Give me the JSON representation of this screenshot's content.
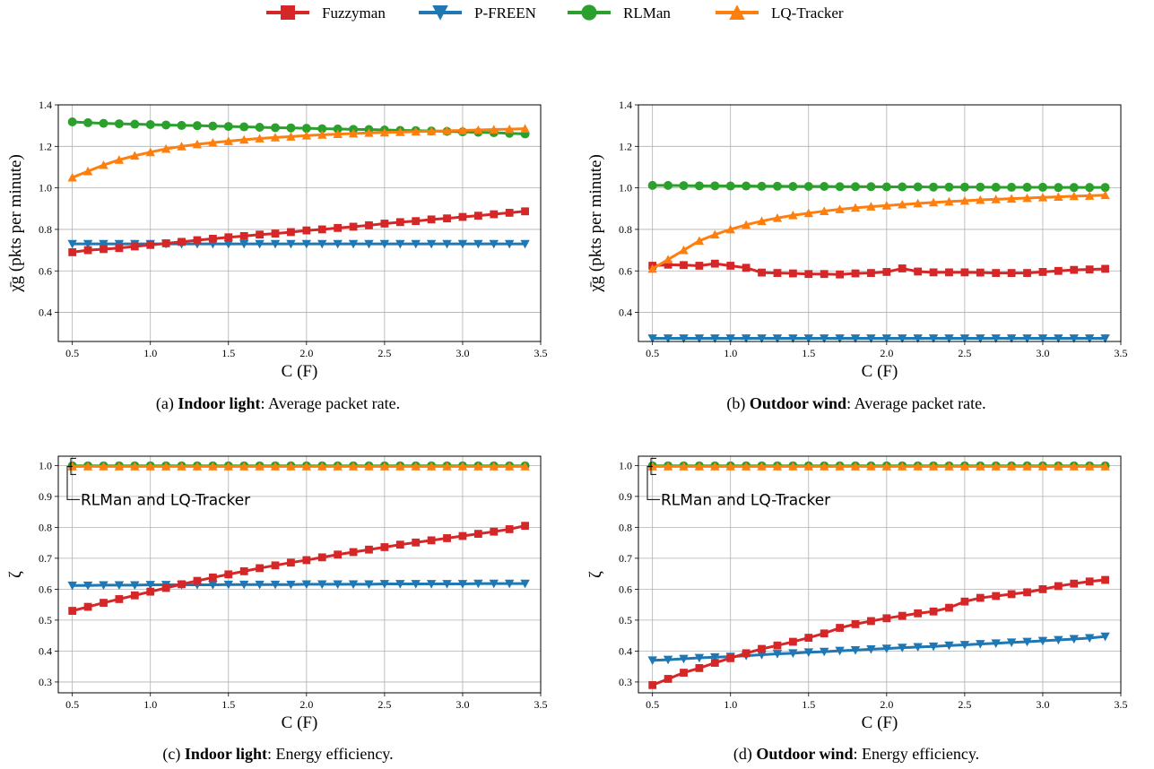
{
  "legend": [
    {
      "name": "Fuzzyman",
      "color": "#d62728",
      "marker": "square"
    },
    {
      "name": "P-FREEN",
      "color": "#1f77b4",
      "marker": "triangle-down"
    },
    {
      "name": "RLMan",
      "color": "#2ca02c",
      "marker": "circle"
    },
    {
      "name": "LQ-Tracker",
      "color": "#ff7f0e",
      "marker": "triangle-up"
    }
  ],
  "captions": [
    {
      "prefix": "(a) ",
      "bold": "Indoor light",
      "rest": ": Average packet rate."
    },
    {
      "prefix": "(b) ",
      "bold": "Outdoor wind",
      "rest": ": Average packet rate."
    },
    {
      "prefix": "(c) ",
      "bold": "Indoor light",
      "rest": ": Energy efficiency."
    },
    {
      "prefix": "(d) ",
      "bold": "Outdoor wind",
      "rest": ": Energy efficiency."
    }
  ],
  "chart_data": [
    {
      "type": "line",
      "xlabel": "C (F)",
      "ylabel": "χ̄g (pkts per minute)",
      "xlim": [
        0.41,
        3.5
      ],
      "ylim": [
        0.26,
        1.4
      ],
      "xticks": [
        0.5,
        1.0,
        1.5,
        2.0,
        2.5,
        3.0,
        3.5
      ],
      "yticks": [
        0.4,
        0.6,
        0.8,
        1.0,
        1.2,
        1.4
      ],
      "grid": true,
      "x": [
        0.5,
        0.6,
        0.7,
        0.8,
        0.9,
        1.0,
        1.1,
        1.2,
        1.3,
        1.4,
        1.5,
        1.6,
        1.7,
        1.8,
        1.9,
        2.0,
        2.1,
        2.2,
        2.3,
        2.4,
        2.5,
        2.6,
        2.7,
        2.8,
        2.9,
        3.0,
        3.1,
        3.2,
        3.3,
        3.4
      ],
      "series": [
        {
          "name": "Fuzzyman",
          "values": [
            0.69,
            0.7,
            0.705,
            0.71,
            0.718,
            0.725,
            0.733,
            0.74,
            0.748,
            0.755,
            0.762,
            0.768,
            0.775,
            0.78,
            0.787,
            0.795,
            0.8,
            0.807,
            0.813,
            0.82,
            0.828,
            0.835,
            0.84,
            0.848,
            0.853,
            0.86,
            0.866,
            0.873,
            0.88,
            0.887
          ]
        },
        {
          "name": "P-FREEN",
          "values": [
            0.73,
            0.73,
            0.73,
            0.73,
            0.73,
            0.73,
            0.73,
            0.73,
            0.73,
            0.73,
            0.73,
            0.73,
            0.73,
            0.73,
            0.73,
            0.73,
            0.73,
            0.73,
            0.73,
            0.73,
            0.73,
            0.73,
            0.73,
            0.73,
            0.73,
            0.73,
            0.73,
            0.73,
            0.73,
            0.73
          ]
        },
        {
          "name": "RLMan",
          "values": [
            1.318,
            1.314,
            1.311,
            1.309,
            1.307,
            1.305,
            1.303,
            1.301,
            1.3,
            1.298,
            1.296,
            1.294,
            1.292,
            1.29,
            1.289,
            1.287,
            1.285,
            1.284,
            1.282,
            1.281,
            1.279,
            1.277,
            1.276,
            1.274,
            1.272,
            1.27,
            1.268,
            1.266,
            1.263,
            1.26
          ]
        },
        {
          "name": "LQ-Tracker",
          "values": [
            1.05,
            1.08,
            1.11,
            1.135,
            1.155,
            1.172,
            1.188,
            1.2,
            1.21,
            1.218,
            1.225,
            1.232,
            1.238,
            1.243,
            1.247,
            1.252,
            1.256,
            1.259,
            1.262,
            1.265,
            1.267,
            1.269,
            1.271,
            1.273,
            1.275,
            1.277,
            1.279,
            1.281,
            1.283,
            1.285
          ]
        }
      ]
    },
    {
      "type": "line",
      "xlabel": "C (F)",
      "ylabel": "χ̄g (pkts per minute)",
      "xlim": [
        0.41,
        3.5
      ],
      "ylim": [
        0.26,
        1.4
      ],
      "xticks": [
        0.5,
        1.0,
        1.5,
        2.0,
        2.5,
        3.0,
        3.5
      ],
      "yticks": [
        0.4,
        0.6,
        0.8,
        1.0,
        1.2,
        1.4
      ],
      "grid": true,
      "x": [
        0.5,
        0.6,
        0.7,
        0.8,
        0.9,
        1.0,
        1.1,
        1.2,
        1.3,
        1.4,
        1.5,
        1.6,
        1.7,
        1.8,
        1.9,
        2.0,
        2.1,
        2.2,
        2.3,
        2.4,
        2.5,
        2.6,
        2.7,
        2.8,
        2.9,
        3.0,
        3.1,
        3.2,
        3.3,
        3.4
      ],
      "series": [
        {
          "name": "Fuzzyman",
          "values": [
            0.625,
            0.63,
            0.628,
            0.625,
            0.635,
            0.625,
            0.615,
            0.592,
            0.59,
            0.588,
            0.585,
            0.585,
            0.583,
            0.588,
            0.59,
            0.595,
            0.612,
            0.597,
            0.593,
            0.593,
            0.593,
            0.592,
            0.59,
            0.59,
            0.59,
            0.595,
            0.6,
            0.605,
            0.607,
            0.61
          ]
        },
        {
          "name": "P-FREEN",
          "values": [
            0.275,
            0.275,
            0.275,
            0.275,
            0.275,
            0.275,
            0.275,
            0.275,
            0.275,
            0.275,
            0.275,
            0.275,
            0.275,
            0.275,
            0.275,
            0.275,
            0.275,
            0.275,
            0.275,
            0.275,
            0.275,
            0.275,
            0.275,
            0.275,
            0.275,
            0.275,
            0.275,
            0.275,
            0.275,
            0.275
          ]
        },
        {
          "name": "RLMan",
          "values": [
            1.012,
            1.012,
            1.011,
            1.01,
            1.01,
            1.009,
            1.009,
            1.008,
            1.008,
            1.007,
            1.007,
            1.007,
            1.006,
            1.006,
            1.006,
            1.005,
            1.005,
            1.005,
            1.004,
            1.004,
            1.004,
            1.004,
            1.003,
            1.003,
            1.003,
            1.003,
            1.002,
            1.002,
            1.002,
            1.002
          ]
        },
        {
          "name": "LQ-Tracker",
          "values": [
            0.61,
            0.655,
            0.7,
            0.745,
            0.775,
            0.8,
            0.822,
            0.84,
            0.855,
            0.868,
            0.878,
            0.888,
            0.897,
            0.904,
            0.91,
            0.915,
            0.92,
            0.925,
            0.93,
            0.934,
            0.938,
            0.942,
            0.945,
            0.948,
            0.951,
            0.954,
            0.957,
            0.96,
            0.962,
            0.965
          ]
        }
      ]
    },
    {
      "type": "line",
      "xlabel": "C (F)",
      "ylabel": "ζ",
      "xlim": [
        0.41,
        3.5
      ],
      "ylim": [
        0.265,
        1.03
      ],
      "xticks": [
        0.5,
        1.0,
        1.5,
        2.0,
        2.5,
        3.0,
        3.5
      ],
      "yticks": [
        0.3,
        0.4,
        0.5,
        0.6,
        0.7,
        0.8,
        0.9,
        1.0
      ],
      "grid": true,
      "annotation": "RLMan and LQ-Tracker",
      "x": [
        0.5,
        0.6,
        0.7,
        0.8,
        0.9,
        1.0,
        1.1,
        1.2,
        1.3,
        1.4,
        1.5,
        1.6,
        1.7,
        1.8,
        1.9,
        2.0,
        2.1,
        2.2,
        2.3,
        2.4,
        2.5,
        2.6,
        2.7,
        2.8,
        2.9,
        3.0,
        3.1,
        3.2,
        3.3,
        3.4
      ],
      "series": [
        {
          "name": "Fuzzyman",
          "values": [
            0.53,
            0.543,
            0.556,
            0.568,
            0.58,
            0.592,
            0.604,
            0.616,
            0.627,
            0.638,
            0.648,
            0.658,
            0.668,
            0.677,
            0.686,
            0.694,
            0.703,
            0.712,
            0.72,
            0.728,
            0.736,
            0.744,
            0.751,
            0.758,
            0.765,
            0.772,
            0.779,
            0.786,
            0.794,
            0.805
          ]
        },
        {
          "name": "P-FREEN",
          "values": [
            0.612,
            0.612,
            0.613,
            0.613,
            0.613,
            0.614,
            0.614,
            0.614,
            0.614,
            0.614,
            0.615,
            0.615,
            0.615,
            0.615,
            0.615,
            0.616,
            0.616,
            0.616,
            0.616,
            0.616,
            0.617,
            0.617,
            0.617,
            0.617,
            0.617,
            0.617,
            0.618,
            0.618,
            0.618,
            0.618
          ]
        },
        {
          "name": "RLMan",
          "values": [
            0.999,
            0.999,
            0.999,
            0.999,
            0.999,
            0.999,
            0.999,
            0.999,
            0.999,
            0.999,
            0.999,
            0.999,
            0.999,
            0.999,
            0.999,
            0.999,
            0.999,
            0.999,
            0.999,
            0.999,
            0.999,
            0.999,
            0.999,
            0.999,
            0.999,
            0.999,
            0.999,
            0.999,
            0.999,
            0.999
          ]
        },
        {
          "name": "LQ-Tracker",
          "values": [
            0.997,
            0.997,
            0.997,
            0.997,
            0.997,
            0.997,
            0.997,
            0.997,
            0.997,
            0.997,
            0.997,
            0.997,
            0.997,
            0.997,
            0.997,
            0.997,
            0.997,
            0.997,
            0.997,
            0.997,
            0.997,
            0.997,
            0.997,
            0.997,
            0.997,
            0.997,
            0.997,
            0.997,
            0.997,
            0.997
          ]
        }
      ]
    },
    {
      "type": "line",
      "xlabel": "C (F)",
      "ylabel": "ζ",
      "xlim": [
        0.41,
        3.5
      ],
      "ylim": [
        0.265,
        1.03
      ],
      "xticks": [
        0.5,
        1.0,
        1.5,
        2.0,
        2.5,
        3.0,
        3.5
      ],
      "yticks": [
        0.3,
        0.4,
        0.5,
        0.6,
        0.7,
        0.8,
        0.9,
        1.0
      ],
      "grid": true,
      "annotation": "RLMan and LQ-Tracker",
      "x": [
        0.5,
        0.6,
        0.7,
        0.8,
        0.9,
        1.0,
        1.1,
        1.2,
        1.3,
        1.4,
        1.5,
        1.6,
        1.7,
        1.8,
        1.9,
        2.0,
        2.1,
        2.2,
        2.3,
        2.4,
        2.5,
        2.6,
        2.7,
        2.8,
        2.9,
        3.0,
        3.1,
        3.2,
        3.3,
        3.4
      ],
      "series": [
        {
          "name": "Fuzzyman",
          "values": [
            0.29,
            0.31,
            0.33,
            0.345,
            0.362,
            0.377,
            0.393,
            0.407,
            0.418,
            0.43,
            0.443,
            0.457,
            0.475,
            0.487,
            0.497,
            0.506,
            0.514,
            0.522,
            0.528,
            0.54,
            0.56,
            0.572,
            0.578,
            0.584,
            0.59,
            0.6,
            0.61,
            0.618,
            0.625,
            0.63
          ]
        },
        {
          "name": "P-FREEN",
          "values": [
            0.37,
            0.372,
            0.375,
            0.378,
            0.38,
            0.382,
            0.385,
            0.388,
            0.391,
            0.393,
            0.396,
            0.398,
            0.401,
            0.403,
            0.406,
            0.408,
            0.411,
            0.413,
            0.415,
            0.418,
            0.42,
            0.423,
            0.425,
            0.428,
            0.43,
            0.433,
            0.436,
            0.439,
            0.442,
            0.447
          ]
        },
        {
          "name": "RLMan",
          "values": [
            0.999,
            0.999,
            0.999,
            0.999,
            0.999,
            0.999,
            0.999,
            0.999,
            0.999,
            0.999,
            0.999,
            0.999,
            0.999,
            0.999,
            0.999,
            0.999,
            0.999,
            0.999,
            0.999,
            0.999,
            0.999,
            0.999,
            0.999,
            0.999,
            0.999,
            0.999,
            0.999,
            0.999,
            0.999,
            0.999
          ]
        },
        {
          "name": "LQ-Tracker",
          "values": [
            0.997,
            0.997,
            0.997,
            0.997,
            0.997,
            0.997,
            0.997,
            0.997,
            0.997,
            0.997,
            0.997,
            0.997,
            0.997,
            0.997,
            0.997,
            0.997,
            0.997,
            0.997,
            0.997,
            0.997,
            0.997,
            0.997,
            0.997,
            0.997,
            0.997,
            0.997,
            0.997,
            0.997,
            0.997,
            0.997
          ]
        }
      ]
    }
  ]
}
